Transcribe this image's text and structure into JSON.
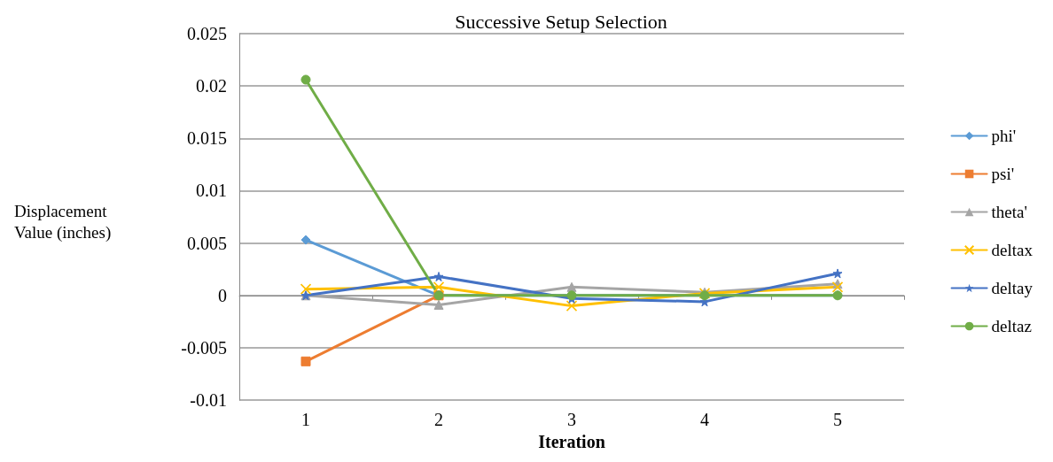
{
  "chart_data": {
    "type": "line",
    "title": "Successive Setup Selection",
    "xlabel": "Iteration",
    "ylabel": "Displacement Value (inches)",
    "categories": [
      "1",
      "2",
      "3",
      "4",
      "5"
    ],
    "series": [
      {
        "name": "phi'",
        "color": "#5b9bd5",
        "marker": "diamond",
        "values": [
          0.0053,
          0,
          0,
          0,
          0
        ]
      },
      {
        "name": "psi'",
        "color": "#ed7d31",
        "marker": "square",
        "values": [
          -0.0063,
          0,
          null,
          null,
          null
        ]
      },
      {
        "name": "theta'",
        "color": "#a5a5a5",
        "marker": "triangle",
        "values": [
          0,
          -0.0009,
          0.0008,
          0.0003,
          0.0011
        ]
      },
      {
        "name": "deltax",
        "color": "#ffc000",
        "marker": "cross",
        "values": [
          0.0006,
          0.0008,
          -0.001,
          0.0002,
          0.0008
        ]
      },
      {
        "name": "deltay",
        "color": "#4472c4",
        "marker": "star",
        "values": [
          0,
          0.0018,
          -0.0003,
          -0.0006,
          0.0021
        ]
      },
      {
        "name": "deltaz",
        "color": "#70ad47",
        "marker": "circle",
        "values": [
          0.0206,
          0,
          0,
          0,
          0
        ]
      }
    ],
    "ylim": [
      -0.01,
      0.025
    ],
    "yticks": [
      -0.01,
      -0.005,
      0,
      0.005,
      0.01,
      0.015,
      0.02,
      0.025
    ],
    "grid": "y",
    "legend": "right",
    "line_style": "solid"
  }
}
